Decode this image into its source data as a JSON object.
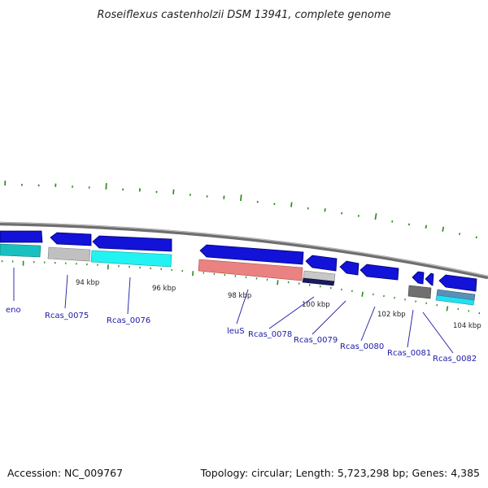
{
  "title": "Roseiflexus castenholzii DSM 13941, complete genome",
  "footer": {
    "accession": "Accession: NC_009767",
    "summary": "Topology: circular; Length: 5,723,298 bp; Genes: 4,385"
  },
  "colors": {
    "backbone": "#8a8a8a",
    "gc_ticks": "#2e8b1e",
    "cds_forward": "#1010e0",
    "label": "#1a1aa8",
    "trna": "#e88080",
    "cog_gray": "#b8b8b8",
    "cog_cyan": "#20f0f0",
    "cog_teal": "#18c0c0",
    "cog_dark": "#1a1a60"
  },
  "scale": {
    "labels": [
      "94 kbp",
      "96 kbp",
      "98 kbp",
      "100 kbp",
      "102 kbp",
      "104 kbp"
    ]
  },
  "genes": [
    {
      "name": "eno",
      "strand": "reverse",
      "cog_color": "#18c0c0"
    },
    {
      "name": "Rcas_0075",
      "strand": "reverse",
      "cog_color": "#b8b8b8"
    },
    {
      "name": "Rcas_0076",
      "strand": "reverse",
      "cog_color": "#20f0f0"
    },
    {
      "name": "leuS",
      "strand": "reverse",
      "cog_color": "#e88080"
    },
    {
      "name": "Rcas_0078",
      "strand": "reverse",
      "cog_color": "#b8b8b8"
    },
    {
      "name": "Rcas_0079",
      "strand": "reverse",
      "cog_color": ""
    },
    {
      "name": "Rcas_0080",
      "strand": "reverse",
      "cog_color": ""
    },
    {
      "name": "Rcas_0081",
      "strand": "reverse",
      "cog_color": "#707070"
    },
    {
      "name": "Rcas_0082",
      "strand": "reverse",
      "cog_color": "#5090c0"
    }
  ]
}
